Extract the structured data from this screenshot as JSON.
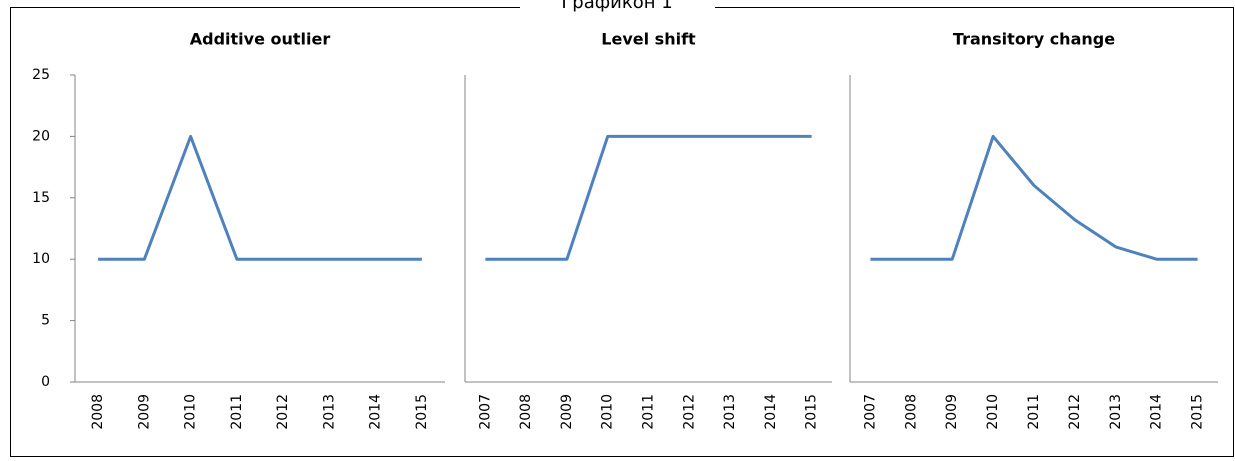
{
  "figure_title": "Графикон 1",
  "chart_data": [
    {
      "type": "line",
      "title": "Additive outlier",
      "categories": [
        "2008",
        "2009",
        "2010",
        "2011",
        "2012",
        "2013",
        "2014",
        "2015"
      ],
      "values": [
        10,
        10,
        20,
        10,
        10,
        10,
        10,
        10
      ],
      "color": "#4f81bd",
      "ylim": [
        0,
        25
      ],
      "yticks": [
        0,
        5,
        10,
        15,
        20,
        25
      ]
    },
    {
      "type": "line",
      "title": "Level shift",
      "categories": [
        "2007",
        "2008",
        "2009",
        "2010",
        "2011",
        "2012",
        "2013",
        "2014",
        "2015"
      ],
      "values": [
        10,
        10,
        10,
        20,
        20,
        20,
        20,
        20,
        20
      ],
      "color": "#4f81bd",
      "ylim": [
        0,
        25
      ]
    },
    {
      "type": "line",
      "title": "Transitory change",
      "categories": [
        "2007",
        "2008",
        "2009",
        "2010",
        "2011",
        "2012",
        "2013",
        "2014",
        "2015"
      ],
      "values": [
        10,
        10,
        10,
        20,
        16,
        13.2,
        11,
        10,
        10
      ],
      "color": "#4f81bd",
      "ylim": [
        0,
        25
      ]
    }
  ]
}
